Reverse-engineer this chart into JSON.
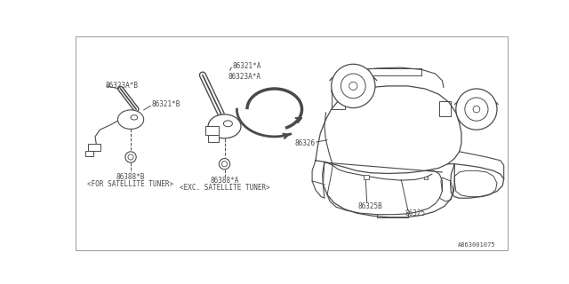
{
  "bg_color": "#ffffff",
  "line_color": "#4a4a4a",
  "text_color": "#4a4a4a",
  "border_color": "#999999",
  "fig_width": 6.4,
  "fig_height": 3.2,
  "dpi": 100,
  "part_number": "A863001075",
  "labels": {
    "86321A": "86321*A",
    "86323A_A": "86323A*A",
    "86321B": "86321*B",
    "86323A_B": "86323A*B",
    "86388A": "86388*A",
    "exc_sat": "<EXC. SATELLITE TUNER>",
    "86388B": "86388*B",
    "for_sat": "<FOR SATELLITE TUNER>",
    "86325": "86325",
    "86325B": "86325B",
    "86326": "86326"
  }
}
